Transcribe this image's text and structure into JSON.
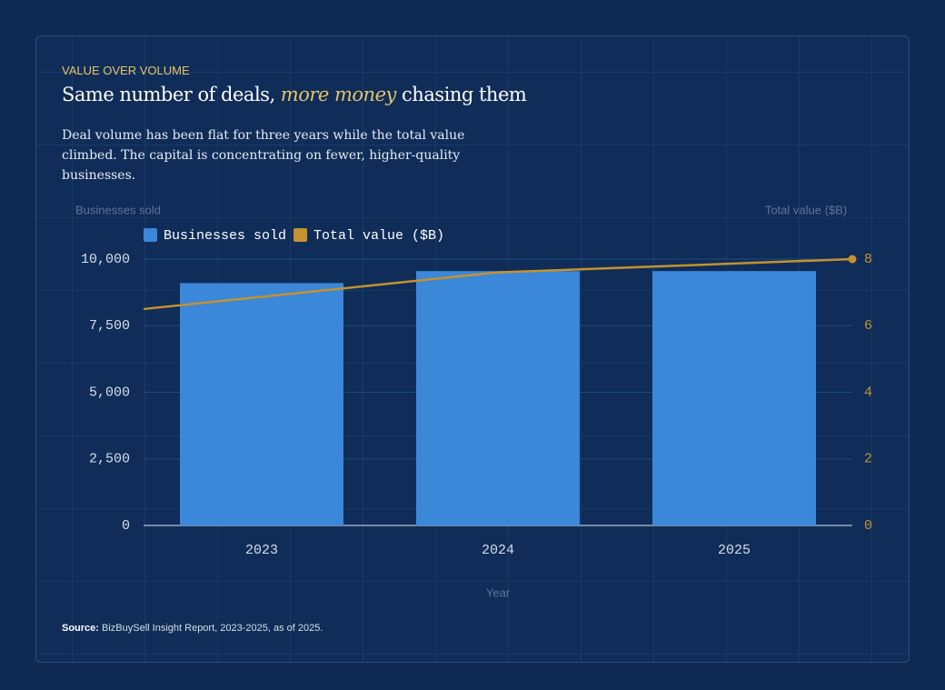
{
  "eyebrow": "VALUE OVER VOLUME",
  "headline": {
    "before": "Same number of deals, ",
    "emphasis": "more money",
    "after": " chasing them"
  },
  "description": "Deal volume has been flat for three years while the total value climbed. The capital is concentrating on fewer, higher-quality businesses.",
  "source": {
    "label": "Source:",
    "text": "BizBuySell Insight Report, 2023-2025, as of 2025."
  },
  "chart_data": {
    "type": "bar+line",
    "y_label": "Businesses sold",
    "y2_label": "Total value ($B)",
    "x_label": "Year",
    "categories": [
      "2023",
      "2024",
      "2025"
    ],
    "series": [
      {
        "name": "Businesses sold",
        "type": "bar",
        "color": "#3b87d9",
        "values": [
          9100,
          9550,
          9550
        ]
      },
      {
        "name": "Total value ($B)",
        "type": "line",
        "axis": "y2",
        "color": "#c4922f",
        "values": [
          6.5,
          7.6,
          8.0
        ]
      }
    ],
    "ylim": [
      0,
      10000
    ],
    "yticks": [
      0,
      {
        "value": 2500,
        "label": "2,500"
      },
      {
        "value": 5000,
        "label": "5,000"
      },
      {
        "value": 7500,
        "label": "7,500"
      },
      {
        "value": 10000,
        "label": "10,000"
      }
    ],
    "y2lim": [
      0,
      8
    ],
    "y2ticks": [
      0,
      2,
      4,
      6,
      8
    ],
    "grid": true,
    "legend": "top-left"
  }
}
